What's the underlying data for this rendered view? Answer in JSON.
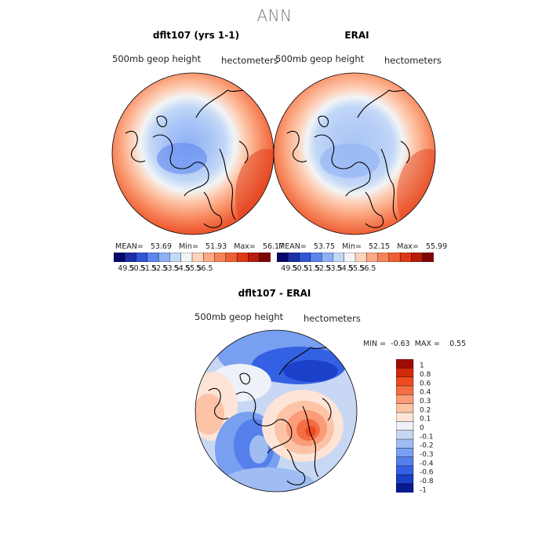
{
  "suptitle": "ANN",
  "chart_data": [
    {
      "type": "heatmap",
      "title": "dflt107 (yrs 1-1)",
      "variable_label": "500mb geop height",
      "units_label": "hectometers",
      "stats": {
        "mean_label": "MEAN=",
        "mean": "53.69",
        "min_label": "Min=",
        "min": "51.93",
        "max_label": "Max=",
        "max": "56.17"
      },
      "colorbar_ticks": [
        "49.5",
        "50.5",
        "51.5",
        "52.5",
        "53.5",
        "54.5",
        "55.5",
        "56.5"
      ],
      "colorbar_colors": [
        "#08086b",
        "#1c2fa8",
        "#2f56d6",
        "#5b85ee",
        "#8fb0f5",
        "#c2d8f7",
        "#f2f4f6",
        "#fdd2bb",
        "#fbaa85",
        "#f6835a",
        "#ef5f36",
        "#de3a17",
        "#b71c0c",
        "#7f0606"
      ],
      "field_range": [
        51.93,
        56.17
      ]
    },
    {
      "type": "heatmap",
      "title": "ERAI",
      "variable_label": "500mb geop height",
      "units_label": "hectometers",
      "stats": {
        "mean_label": "MEAN=",
        "mean": "53.75",
        "min_label": "Min=",
        "min": "52.15",
        "max_label": "Max=",
        "max": "55.99"
      },
      "colorbar_ticks": [
        "49.5",
        "50.5",
        "51.5",
        "52.5",
        "53.5",
        "54.5",
        "55.5",
        "56.5"
      ],
      "colorbar_colors": [
        "#08086b",
        "#1c2fa8",
        "#2f56d6",
        "#5b85ee",
        "#8fb0f5",
        "#c2d8f7",
        "#f2f4f6",
        "#fdd2bb",
        "#fbaa85",
        "#f6835a",
        "#ef5f36",
        "#de3a17",
        "#b71c0c",
        "#7f0606"
      ],
      "field_range": [
        52.15,
        55.99
      ]
    },
    {
      "type": "heatmap",
      "title": "dflt107 - ERAI",
      "variable_label": "500mb geop height",
      "units_label": "hectometers",
      "stats": {
        "min_label": "MIN =",
        "min": "-0.63",
        "max_label": "MAX =",
        "max": "0.55"
      },
      "colorbar_ticks": [
        "1",
        "0.8",
        "0.6",
        "0.4",
        "0.3",
        "0.2",
        "0.1",
        "0",
        "-0.1",
        "-0.2",
        "-0.3",
        "-0.4",
        "-0.6",
        "-0.8",
        "-1"
      ],
      "colorbar_colors": [
        "#9e0b04",
        "#d42a0c",
        "#ee4b22",
        "#f56d44",
        "#fa9c78",
        "#fcc3a6",
        "#fde4d6",
        "#eef1f7",
        "#c7d7f4",
        "#9fbdf2",
        "#789ff0",
        "#5580ec",
        "#3461e3",
        "#1b40c9",
        "#081a8f"
      ],
      "field_range": [
        -0.63,
        0.55
      ]
    }
  ]
}
